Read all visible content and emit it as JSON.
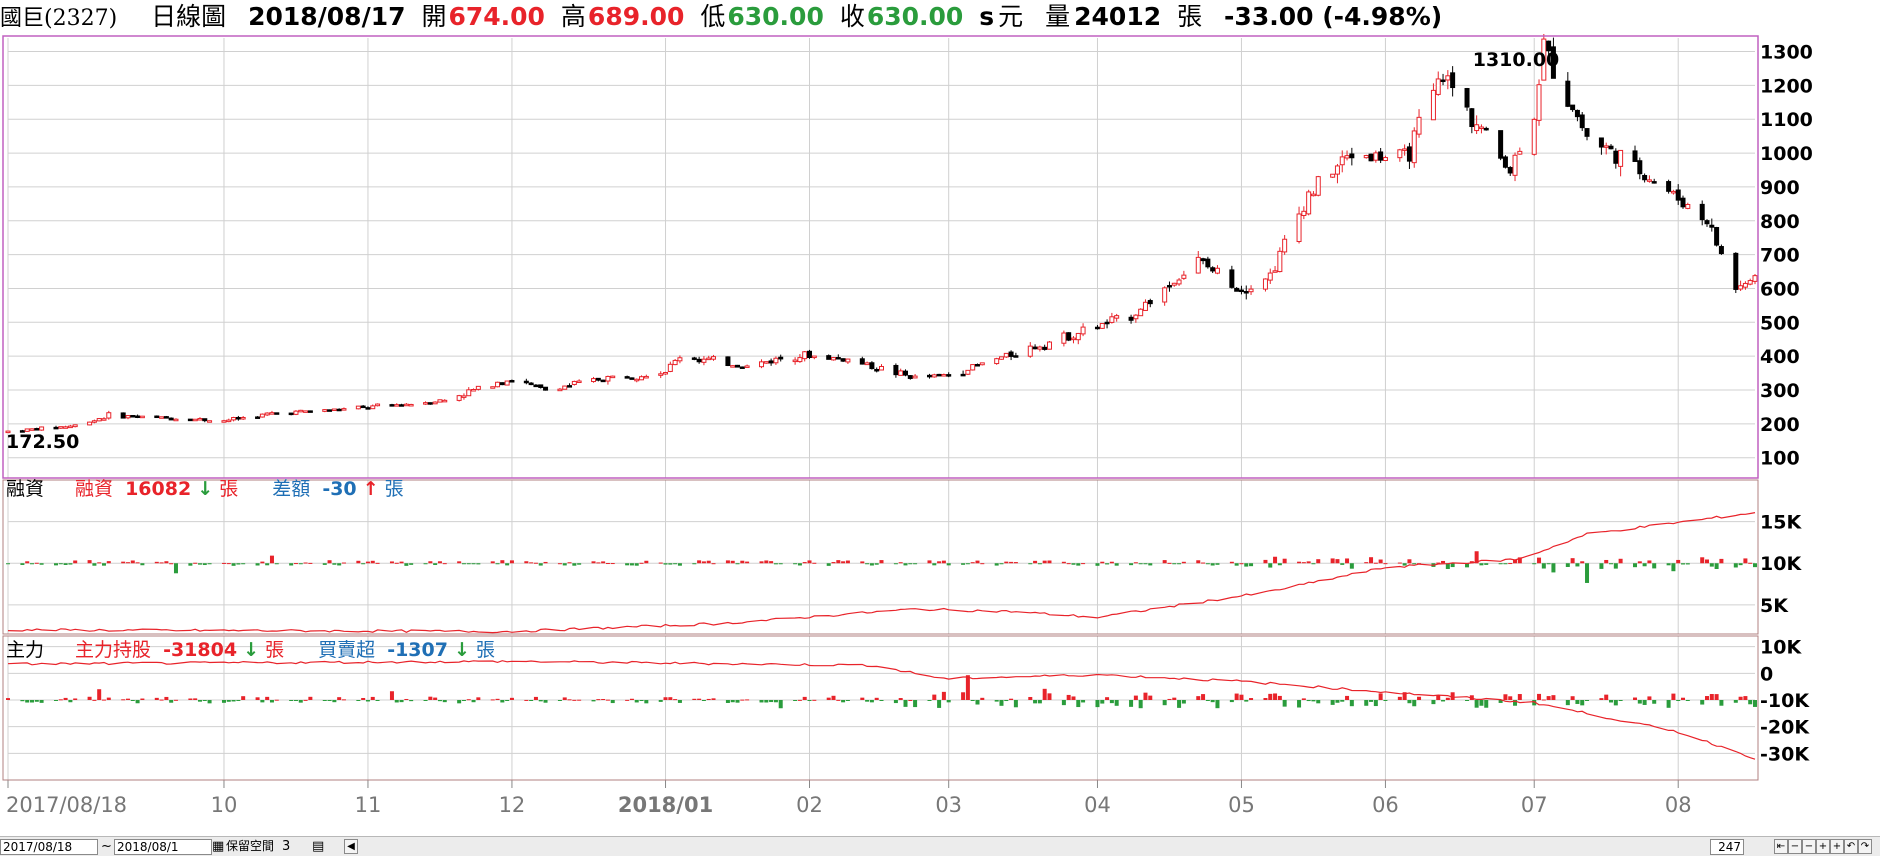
{
  "header": {
    "stock": "國巨(2327)",
    "period": "日線圖",
    "date": "2018/08/17",
    "open_label": "開",
    "open": "674.00",
    "high_label": "高",
    "high": "689.00",
    "low_label": "低",
    "low": "630.00",
    "close_label": "收",
    "close": "630.00",
    "s_mark": "s",
    "unit": "元",
    "volume_label": "量",
    "volume": "24012",
    "volume_unit": "張",
    "change": "-33.00 (-4.98%)"
  },
  "colors": {
    "up": "#e8232a",
    "down": "#000000",
    "pos_bar": "#e8232a",
    "neg_bar": "#2a9c3c",
    "line": "#e8232a",
    "frame": "#c060c0",
    "blue": "#1f6fb5",
    "green_arrow": "#2a9c3c"
  },
  "panels": {
    "margin": {
      "title": "融資",
      "label1": "融資",
      "value1": "16082",
      "arrow1": "↓",
      "unit1": "張",
      "label2": "差額",
      "value2": "-30",
      "arrow2": "↑",
      "unit2": "張"
    },
    "major": {
      "title": "主力",
      "label1": "主力持股",
      "value1": "-31804",
      "arrow1": "↓",
      "unit1": "張",
      "label2": "買賣超",
      "value2": "-1307",
      "arrow2": "↓",
      "unit2": "張"
    }
  },
  "footer": {
    "date_from": "2017/08/18",
    "tilde": "~",
    "date_to": "2018/08/1",
    "keep_space_label": "保留空間",
    "keep_space_value": "3",
    "count": "247"
  },
  "chart_data": [
    {
      "type": "candlestick",
      "title": "",
      "y_ticks": [
        "1300",
        "1200",
        "1100",
        "1000",
        "900",
        "800",
        "700",
        "600",
        "500",
        "400",
        "300",
        "200",
        "100"
      ],
      "ylim": [
        40,
        1340
      ],
      "x_tick_labels": [
        "2017/08/18",
        "10",
        "11",
        "12",
        "2018/01",
        "02",
        "03",
        "04",
        "05",
        "06",
        "07",
        "08"
      ],
      "annotations": {
        "max_label": "1310.00",
        "min_label": "172.50"
      },
      "close_waypoints": [
        {
          "date": "2017/08/18",
          "value": 178
        },
        {
          "date": "2017/09/01",
          "value": 195
        },
        {
          "date": "2017/09/08",
          "value": 225
        },
        {
          "date": "2017/10/02",
          "value": 210
        },
        {
          "date": "2017/10/13",
          "value": 232
        },
        {
          "date": "2017/11/01",
          "value": 248
        },
        {
          "date": "2017/11/17",
          "value": 270
        },
        {
          "date": "2017/11/28",
          "value": 325
        },
        {
          "date": "2017/12/01",
          "value": 330
        },
        {
          "date": "2017/12/08",
          "value": 300
        },
        {
          "date": "2017/12/20",
          "value": 335
        },
        {
          "date": "2018/01/02",
          "value": 355
        },
        {
          "date": "2018/01/05",
          "value": 400
        },
        {
          "date": "2018/01/19",
          "value": 370
        },
        {
          "date": "2018/01/29",
          "value": 405
        },
        {
          "date": "2018/02/09",
          "value": 390
        },
        {
          "date": "2018/02/23",
          "value": 335
        },
        {
          "date": "2018/03/02",
          "value": 345
        },
        {
          "date": "2018/03/16",
          "value": 410
        },
        {
          "date": "2018/04/09",
          "value": 520
        },
        {
          "date": "2018/04/23",
          "value": 680
        },
        {
          "date": "2018/05/02",
          "value": 600
        },
        {
          "date": "2018/05/08",
          "value": 640
        },
        {
          "date": "2018/05/16",
          "value": 880
        },
        {
          "date": "2018/05/25",
          "value": 1000
        },
        {
          "date": "2018/06/05",
          "value": 980
        },
        {
          "date": "2018/06/13",
          "value": 1230
        },
        {
          "date": "2018/06/27",
          "value": 950
        },
        {
          "date": "2018/07/02",
          "value": 1120
        },
        {
          "date": "2018/07/04",
          "value": 1310
        },
        {
          "date": "2018/07/13",
          "value": 1050
        },
        {
          "date": "2018/07/27",
          "value": 920
        },
        {
          "date": "2018/08/07",
          "value": 800
        },
        {
          "date": "2018/08/13",
          "value": 600
        },
        {
          "date": "2018/08/17",
          "value": 630
        }
      ]
    },
    {
      "type": "bar",
      "title": "融資",
      "y_ticks": [
        "15K",
        "10K",
        "5K"
      ],
      "ylim": [
        1500,
        20000
      ],
      "series": [
        {
          "name": "融資",
          "points": [
            {
              "date": "2017/08/18",
              "value": 2000
            },
            {
              "date": "2017/12/01",
              "value": 1800
            },
            {
              "date": "2018/01/15",
              "value": 2800
            },
            {
              "date": "2018/02/23",
              "value": 4500
            },
            {
              "date": "2018/03/15",
              "value": 4200
            },
            {
              "date": "2018/04/02",
              "value": 3500
            },
            {
              "date": "2018/05/07",
              "value": 6500
            },
            {
              "date": "2018/06/01",
              "value": 9500
            },
            {
              "date": "2018/06/29",
              "value": 10500
            },
            {
              "date": "2018/07/13",
              "value": 13500
            },
            {
              "date": "2018/08/17",
              "value": 16082
            }
          ]
        },
        {
          "name": "差額",
          "value_last": -30,
          "baseline": 10000
        }
      ]
    },
    {
      "type": "bar",
      "title": "主力",
      "y_ticks": [
        "10K",
        "0",
        "-10K",
        "-20K",
        "-30K"
      ],
      "ylim": [
        -40000,
        14000
      ],
      "series": [
        {
          "name": "主力持股",
          "points": [
            {
              "date": "2017/08/18",
              "value": 3500
            },
            {
              "date": "2017/12/01",
              "value": 4500
            },
            {
              "date": "2018/02/14",
              "value": 3000
            },
            {
              "date": "2018/03/01",
              "value": -2000
            },
            {
              "date": "2018/04/02",
              "value": -500
            },
            {
              "date": "2018/05/02",
              "value": -3000
            },
            {
              "date": "2018/06/01",
              "value": -7000
            },
            {
              "date": "2018/07/02",
              "value": -11000
            },
            {
              "date": "2018/08/01",
              "value": -22000
            },
            {
              "date": "2018/08/17",
              "value": -31804
            }
          ]
        },
        {
          "name": "買賣超",
          "value_last": -1307,
          "baseline": -10000
        }
      ]
    }
  ]
}
